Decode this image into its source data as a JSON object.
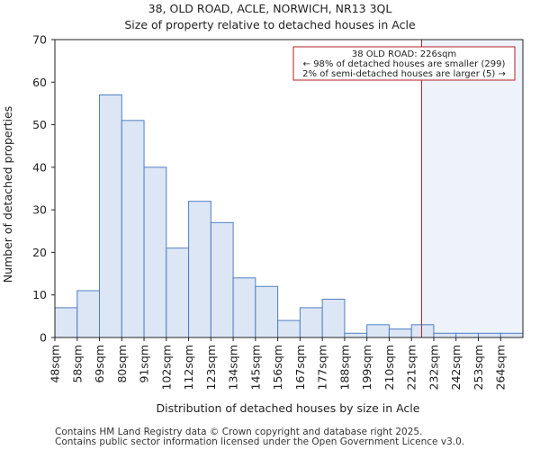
{
  "chart_data": {
    "type": "bar",
    "title": "38, OLD ROAD, ACLE, NORWICH, NR13 3QL",
    "subtitle": "Size of property relative to detached houses in Acle",
    "xlabel": "Distribution of detached houses by size in Acle",
    "ylabel": "Number of detached properties",
    "categories": [
      "48sqm",
      "58sqm",
      "69sqm",
      "80sqm",
      "91sqm",
      "102sqm",
      "112sqm",
      "123sqm",
      "134sqm",
      "145sqm",
      "156sqm",
      "167sqm",
      "177sqm",
      "188sqm",
      "199sqm",
      "210sqm",
      "221sqm",
      "232sqm",
      "242sqm",
      "253sqm",
      "264sqm"
    ],
    "values": [
      7,
      11,
      57,
      51,
      40,
      21,
      32,
      27,
      14,
      12,
      4,
      7,
      9,
      1,
      3,
      2,
      3,
      1,
      1,
      1,
      1
    ],
    "ylim": [
      0,
      70
    ],
    "yticks": [
      0,
      10,
      20,
      30,
      40,
      50,
      60,
      70
    ],
    "grid": false,
    "bar_color": "#dce6f4",
    "bar_edge_color": "#4f7fc4",
    "marker": {
      "value_sqm": 226,
      "color": "#b22222",
      "shade_color": "#eef2fb"
    },
    "annotation": {
      "lines": [
        "38 OLD ROAD: 226sqm",
        "← 98% of detached houses are smaller (299)",
        "2% of semi-detached houses are larger (5) →"
      ],
      "position": "top-right"
    }
  },
  "footer": {
    "line1": "Contains HM Land Registry data © Crown copyright and database right 2025.",
    "line2": "Contains public sector information licensed under the Open Government Licence v3.0."
  }
}
